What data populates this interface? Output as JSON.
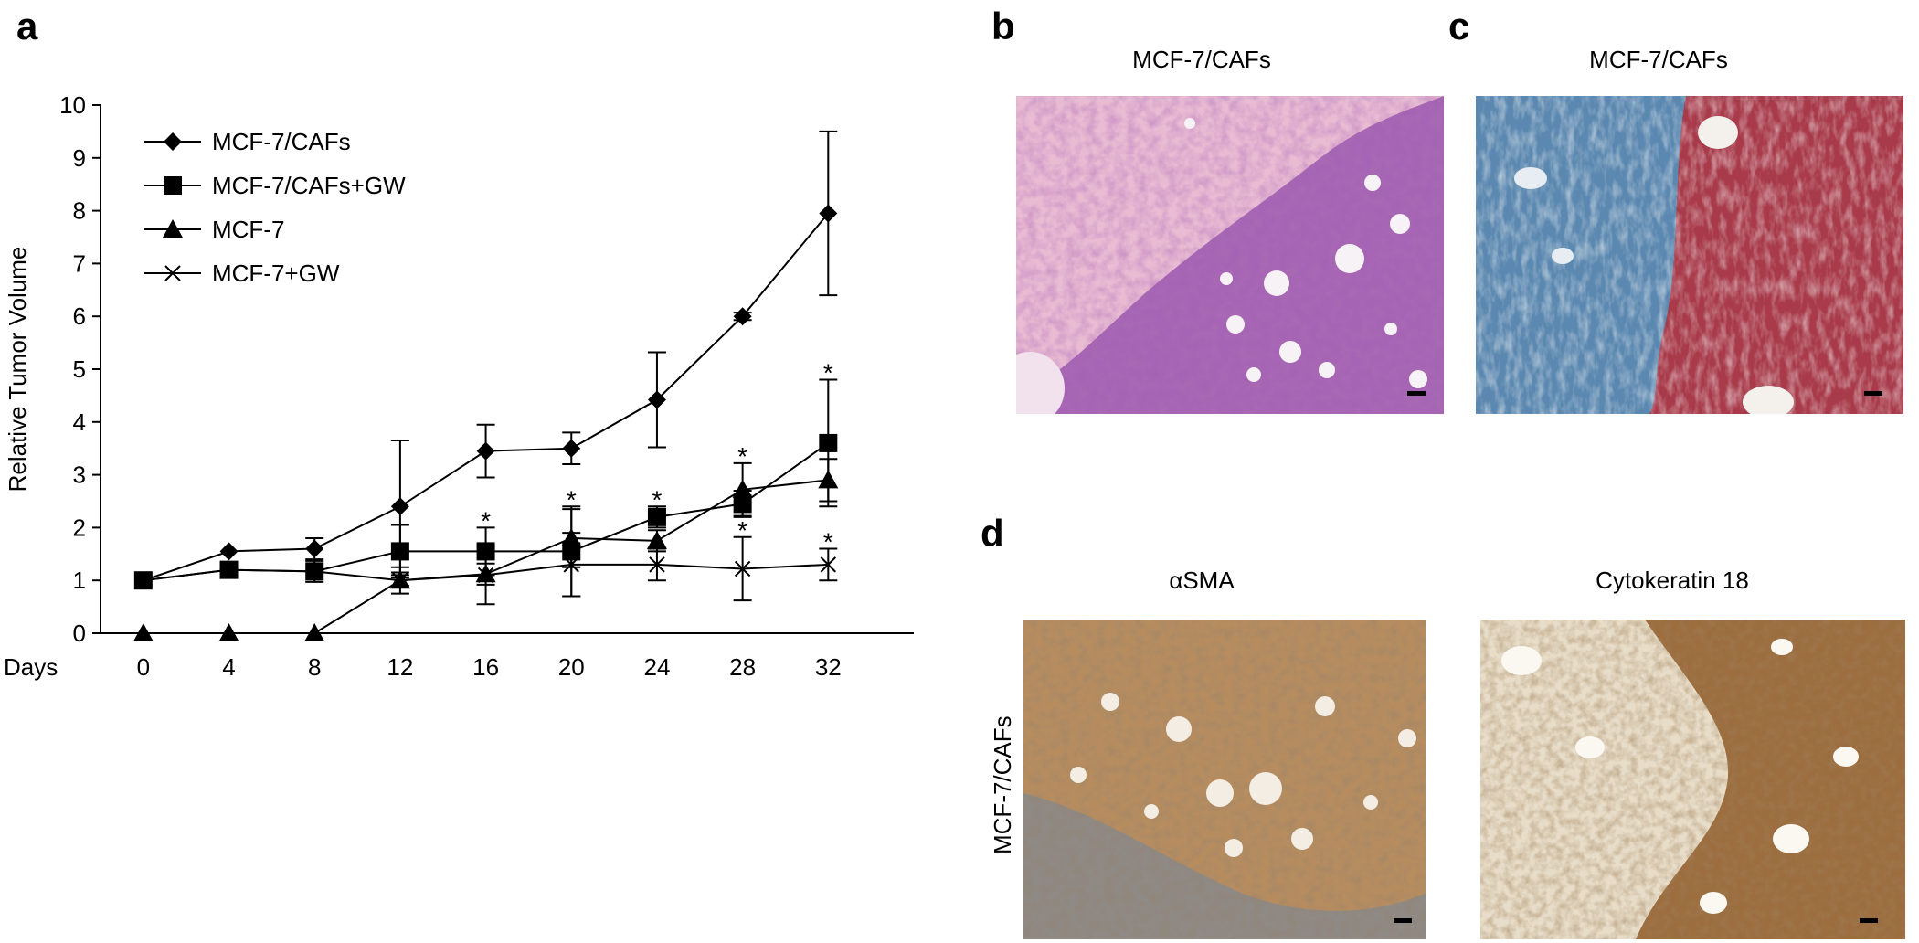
{
  "panels": {
    "a": {
      "letter": "a"
    },
    "b": {
      "letter": "b",
      "caption": "MCF-7/CAFs"
    },
    "c": {
      "letter": "c",
      "caption": "MCF-7/CAFs"
    },
    "d": {
      "letter": "d",
      "left_caption": "αSMA",
      "right_caption": "Cytokeratin 18",
      "side_label": "MCF-7/CAFs"
    }
  },
  "micrograph_colors": {
    "he_stroma": "#e9bcd3",
    "he_tumor": "#a868b4",
    "trichrome_blue": "#5b88b0",
    "trichrome_red": "#a83a4a",
    "ihc_brown": "#b78d5f",
    "ihc_light": "#e8ddc9"
  },
  "chart_data": {
    "type": "line",
    "title": "",
    "xlabel": "Days",
    "ylabel": "Relative Tumor Volume",
    "x": [
      0,
      4,
      8,
      12,
      16,
      20,
      24,
      28,
      32
    ],
    "xticks": [
      "0",
      "4",
      "8",
      "12",
      "16",
      "20",
      "24",
      "28",
      "32"
    ],
    "ylim": [
      0,
      10
    ],
    "yticks": [
      "0",
      "1",
      "2",
      "3",
      "4",
      "5",
      "6",
      "7",
      "8",
      "9",
      "10"
    ],
    "legend_position": "top-left",
    "series": [
      {
        "name": "MCF-7/CAFs",
        "marker": "diamond",
        "values": [
          1.0,
          1.55,
          1.6,
          2.4,
          3.45,
          3.5,
          4.42,
          6.0,
          7.95
        ],
        "errors": [
          0,
          0,
          0.2,
          1.25,
          0.5,
          0.3,
          0.9,
          0.07,
          1.55
        ]
      },
      {
        "name": "MCF-7/CAFs+GW",
        "marker": "square",
        "values": [
          1.0,
          1.2,
          1.17,
          1.55,
          1.55,
          1.55,
          2.2,
          2.45,
          3.6
        ],
        "errors": [
          0,
          0,
          0.2,
          0.5,
          0.45,
          0.85,
          0.2,
          0.25,
          1.2
        ]
      },
      {
        "name": "MCF-7",
        "marker": "triangle",
        "values": [
          0,
          0,
          0,
          1.0,
          1.12,
          1.8,
          1.75,
          2.72,
          2.9
        ],
        "errors": [
          0,
          0,
          0,
          0.25,
          0.2,
          0.55,
          0.2,
          0.5,
          0.4
        ]
      },
      {
        "name": "MCF-7+GW",
        "marker": "x",
        "values": [
          1.0,
          1.2,
          1.17,
          1.0,
          1.1,
          1.3,
          1.3,
          1.22,
          1.3
        ],
        "errors": [
          0,
          0,
          0,
          0.1,
          0.55,
          0.6,
          0.3,
          0.6,
          0.3
        ]
      }
    ],
    "annotations": [
      {
        "text": "*",
        "x": 16,
        "y": 2.0
      },
      {
        "text": "*",
        "x": 20,
        "y": 2.4
      },
      {
        "text": "*",
        "x": 24,
        "y": 2.4
      },
      {
        "text": "*",
        "x": 28,
        "y": 3.22
      },
      {
        "text": "*",
        "x": 28,
        "y": 1.82
      },
      {
        "text": "*",
        "x": 32,
        "y": 4.8
      },
      {
        "text": "*",
        "x": 32,
        "y": 1.6
      }
    ]
  }
}
